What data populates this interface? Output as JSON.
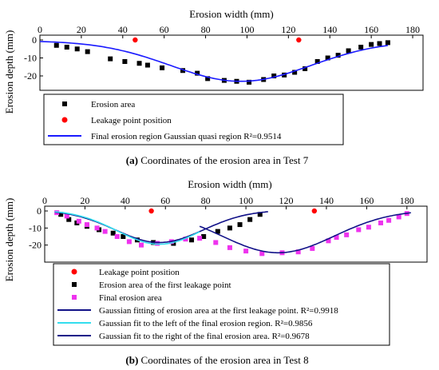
{
  "chart_data": [
    {
      "type": "scatter",
      "xlabel": "Erosion width (mm)",
      "ylabel": "Erosion depth (mm)",
      "xlim": [
        0,
        185
      ],
      "ylim": [
        -28,
        1
      ],
      "x_ticks": [
        0,
        20,
        40,
        60,
        80,
        100,
        120,
        140,
        160,
        180
      ],
      "y_ticks": [
        0,
        -10,
        -20
      ],
      "series": [
        {
          "name": "Erosion area",
          "kind": "points",
          "marker": "square",
          "color": "#000000",
          "x": [
            8,
            13,
            18,
            23,
            34,
            41,
            48,
            52,
            59,
            69,
            76,
            81,
            89,
            95,
            101,
            108,
            113,
            118,
            123,
            128,
            134,
            139,
            144,
            149,
            155,
            160,
            164,
            168
          ],
          "y": [
            -3,
            -4,
            -5,
            -6.5,
            -10.5,
            -12,
            -13,
            -14,
            -15.5,
            -17,
            -18.5,
            -21.5,
            -22.5,
            -23,
            -23.5,
            -22,
            -20,
            -19.5,
            -18,
            -16,
            -12,
            -10,
            -8.5,
            -6,
            -4,
            -2.5,
            -2,
            -1.5
          ]
        },
        {
          "name": "Leakage point position",
          "kind": "points",
          "marker": "circle",
          "color": "#ff0000",
          "x": [
            46,
            125
          ],
          "y": [
            0,
            0
          ]
        },
        {
          "name": "Final erosion region Gaussian quasi region R²=0.9514",
          "kind": "gaussian",
          "color": "#1a1aff",
          "baseline": -0.5,
          "amplitude": -22.5,
          "center": 97,
          "sigma": 34,
          "xrange": [
            0,
            168
          ]
        }
      ],
      "caption_label": "(a)",
      "caption_text": " Coordinates of the erosion area in Test 7",
      "legend": [
        {
          "label": "Erosion area",
          "symbol": "square",
          "color": "#000000"
        },
        {
          "label": "Leakage point position",
          "symbol": "circle",
          "color": "#ff0000"
        },
        {
          "label": "Final erosion region Gaussian quasi region R²=0.9514",
          "symbol": "line",
          "color": "#1a1aff"
        }
      ]
    },
    {
      "type": "scatter",
      "xlabel": "Erosion width (mm)",
      "ylabel": "Erosion depth (mm)",
      "xlim": [
        0,
        190
      ],
      "ylim": [
        -30,
        0
      ],
      "x_ticks": [
        0,
        20,
        40,
        60,
        80,
        100,
        120,
        140,
        160,
        180
      ],
      "y_ticks": [
        0,
        -10,
        -20
      ],
      "series": [
        {
          "name": "Leakage point position",
          "kind": "points",
          "marker": "circle",
          "color": "#ff0000",
          "x": [
            53,
            134
          ],
          "y": [
            0,
            0
          ]
        },
        {
          "name": "Erosion area of the first leakage point",
          "kind": "points",
          "marker": "square",
          "color": "#000000",
          "x": [
            8,
            12,
            16,
            21,
            27,
            34,
            39,
            46,
            54,
            64,
            73,
            79,
            86,
            92,
            97,
            102,
            107
          ],
          "y": [
            -2,
            -5,
            -7,
            -9,
            -11,
            -13,
            -15,
            -17,
            -18.5,
            -19,
            -17,
            -15,
            -12,
            -10,
            -8,
            -5,
            -2
          ]
        },
        {
          "name": "Final erosion area",
          "kind": "points",
          "marker": "square",
          "color": "#ee33ee",
          "x": [
            6,
            11,
            17,
            21,
            26,
            30,
            36,
            42,
            48,
            56,
            63,
            70,
            77,
            85,
            92,
            100,
            108,
            118,
            126,
            133,
            141,
            145,
            150,
            156,
            161,
            167,
            171,
            176,
            180
          ],
          "y": [
            -1,
            -3,
            -6,
            -8,
            -10,
            -12,
            -15,
            -18,
            -20,
            -19,
            -18,
            -16.5,
            -16,
            -18.5,
            -21.5,
            -23.5,
            -25,
            -24.5,
            -24,
            -22,
            -17.5,
            -15.5,
            -14,
            -11,
            -9.5,
            -7,
            -5.5,
            -3.5,
            -1.5
          ]
        },
        {
          "name": "Gaussian fitting of erosion area at the first leakage point. R²=0.9918",
          "kind": "gaussian",
          "color": "#111188",
          "baseline": 0.5,
          "amplitude": -19,
          "center": 57,
          "sigma": 22,
          "xrange": [
            5,
            111
          ]
        },
        {
          "name": "Gaussian fit to the left of the final erosion region. R²=0.9856",
          "kind": "gaussian",
          "color": "#33ddee",
          "baseline": 0.5,
          "amplitude": -20,
          "center": 57,
          "sigma": 21,
          "xrange": [
            5,
            77
          ]
        },
        {
          "name": "Gaussian fit to the right of the final erosion area. R²=0.9678",
          "kind": "gaussian",
          "color": "#111188",
          "baseline": 0.5,
          "amplitude": -25,
          "center": 116,
          "sigma": 28,
          "xrange": [
            77,
            182
          ]
        }
      ],
      "caption_label": "(b)",
      "caption_text": " Coordinates of the erosion area in Test 8",
      "legend": [
        {
          "label": "Leakage point position",
          "symbol": "circle",
          "color": "#ff0000"
        },
        {
          "label": "Erosion area of the first leakage point",
          "symbol": "square",
          "color": "#000000"
        },
        {
          "label": "Final erosion area",
          "symbol": "square",
          "color": "#ee33ee"
        },
        {
          "label": "Gaussian fitting of erosion area at the first leakage point. R²=0.9918",
          "symbol": "line",
          "color": "#111188"
        },
        {
          "label": "Gaussian fit to the left of the final erosion region. R²=0.9856",
          "symbol": "line",
          "color": "#33ddee"
        },
        {
          "label": "Gaussian fit to the right of the final erosion area. R²=0.9678",
          "symbol": "line",
          "color": "#111188"
        }
      ]
    }
  ]
}
